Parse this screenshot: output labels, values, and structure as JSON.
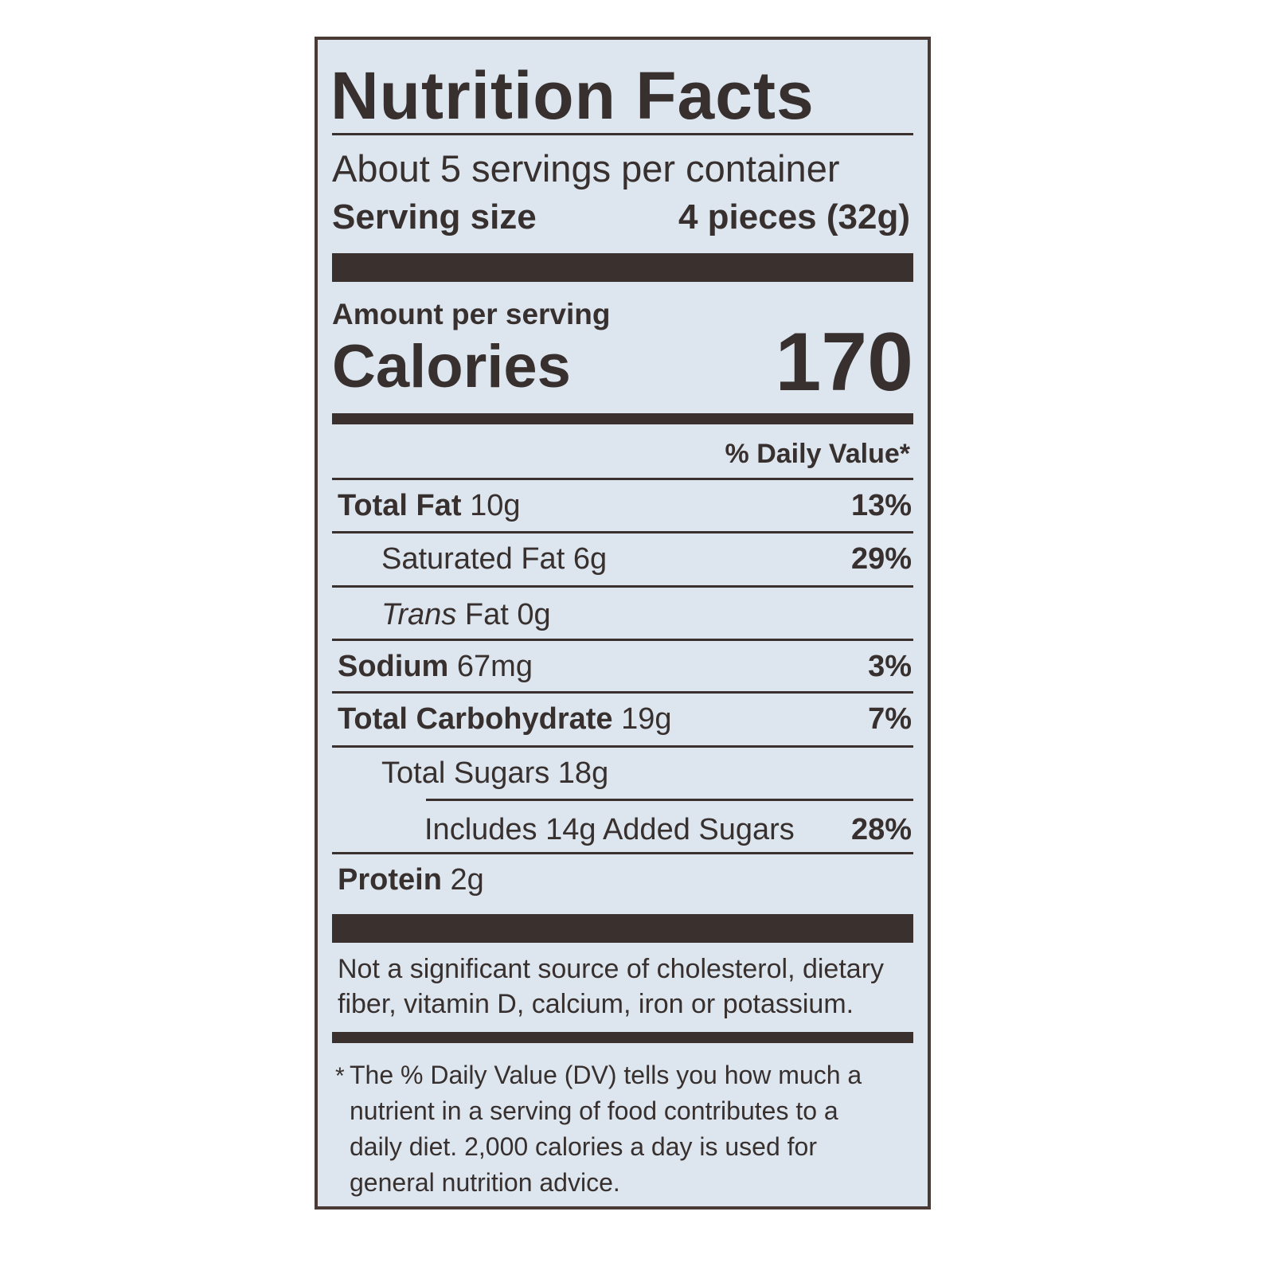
{
  "title": "Nutrition Facts",
  "servings_per_container": "About 5 servings per container",
  "serving_size_label": "Serving size",
  "serving_size_value": "4 pieces (32g)",
  "amount_per_serving": "Amount per serving",
  "calories_label": "Calories",
  "calories_value": "170",
  "daily_value_header": "% Daily Value*",
  "nutrients": [
    {
      "name": "Total Fat",
      "amount": "10g",
      "dv": "13%"
    },
    {
      "name": "Saturated Fat",
      "amount": "6g",
      "dv": "29%"
    },
    {
      "name": "Trans",
      "name_suffix": "Fat",
      "amount": "0g",
      "dv": ""
    },
    {
      "name": "Sodium",
      "amount": "67mg",
      "dv": "3%"
    },
    {
      "name": "Total Carbohydrate",
      "amount": "19g",
      "dv": "7%"
    },
    {
      "name": "Total Sugars",
      "amount": "18g",
      "dv": ""
    },
    {
      "name": "Includes 14g Added Sugars",
      "amount": "",
      "dv": "28%"
    },
    {
      "name": "Protein",
      "amount": "2g",
      "dv": ""
    }
  ],
  "not_significant": [
    "Not a significant source of cholesterol, dietary",
    "fiber, vitamin D, calcium, iron or potassium."
  ],
  "footnote_star": "*",
  "footnote": [
    "The % Daily Value (DV) tells you how much a",
    "nutrient in a serving of food contributes to a",
    "daily diet. 2,000 calories a day is used for",
    "general nutrition advice."
  ],
  "colors": {
    "label_background": "#dde6ee",
    "ink": "#37302e"
  }
}
